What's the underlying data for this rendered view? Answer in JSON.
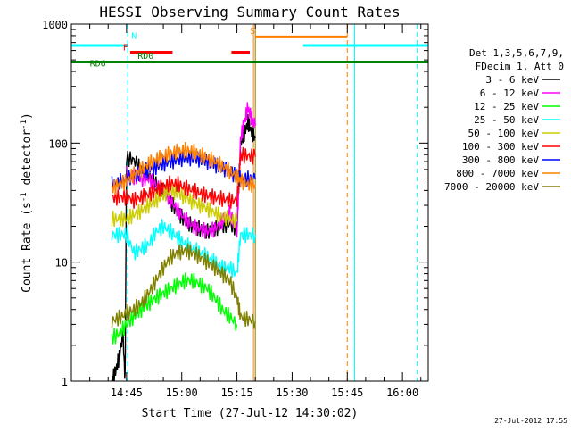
{
  "chart_data": {
    "type": "line",
    "title": "HESSI Observing Summary Count Rates",
    "xlabel": "Start Time (27-Jul-12 14:30:02)",
    "ylabel": "Count Rate (s",
    "ylabel_sup1": "-1",
    "ylabel_mid": " detector",
    "ylabel_sup2": "-1",
    "ylabel_end": ")",
    "x_unit": "minutes after 14:30:02",
    "xlim": [
      0,
      97
    ],
    "ylim": [
      1,
      1000
    ],
    "yscale": "log",
    "grid": false,
    "x_ticks": [
      {
        "value": 15,
        "label": "14:45"
      },
      {
        "value": 30,
        "label": "15:00"
      },
      {
        "value": 45,
        "label": "15:15"
      },
      {
        "value": 60,
        "label": "15:30"
      },
      {
        "value": 75,
        "label": "15:45"
      },
      {
        "value": 90,
        "label": "16:00"
      }
    ],
    "y_ticks": [
      {
        "value": 1,
        "label": "1"
      },
      {
        "value": 10,
        "label": "10"
      },
      {
        "value": 100,
        "label": "100"
      },
      {
        "value": 1000,
        "label": "1000"
      }
    ],
    "legend_header": [
      "Det 1,3,5,6,7,9,",
      "FDecim 1, Att 0"
    ],
    "legend_position": "right",
    "series": [
      {
        "name": "3 - 6 keV",
        "color": "#000000",
        "x": [
          11,
          12,
          13,
          14,
          14.6,
          15,
          17,
          19,
          21,
          23,
          25,
          27,
          29,
          31,
          33,
          35,
          37,
          39,
          41,
          43,
          45,
          46,
          47,
          48,
          49,
          50
        ],
        "y": [
          1,
          1.2,
          1.6,
          2.5,
          1,
          75,
          72,
          60,
          55,
          45,
          40,
          32,
          26,
          22,
          20,
          19,
          18,
          19,
          20,
          21,
          19,
          100,
          120,
          150,
          125,
          110
        ]
      },
      {
        "name": "6 - 12 keV",
        "color": "#ff00ff",
        "x": [
          15,
          17,
          19,
          21,
          23,
          25,
          27,
          29,
          31,
          33,
          35,
          37,
          39,
          41,
          43,
          45,
          46,
          47,
          48,
          49,
          50
        ],
        "y": [
          55,
          52,
          50,
          50,
          45,
          40,
          33,
          27,
          23,
          20,
          19,
          18,
          19,
          22,
          26,
          18,
          110,
          150,
          200,
          160,
          140
        ]
      },
      {
        "name": "12 - 25 keV",
        "color": "#00ff00",
        "x": [
          11,
          13,
          15,
          17,
          19,
          21,
          23,
          25,
          27,
          29,
          31,
          33,
          35,
          37,
          39,
          41,
          43,
          45
        ],
        "y": [
          2.3,
          2.5,
          3,
          3.5,
          4,
          4.5,
          5,
          5.5,
          6,
          6.5,
          7,
          7,
          6.5,
          6,
          5,
          4,
          3.5,
          3
        ]
      },
      {
        "name": "25 - 50 keV",
        "color": "#00ffff",
        "x": [
          11,
          13,
          15,
          17,
          19,
          21,
          23,
          25,
          27,
          29,
          31,
          33,
          35,
          37,
          39,
          41,
          43,
          45,
          46,
          48,
          50
        ],
        "y": [
          17,
          17,
          17,
          12,
          13,
          14,
          18,
          20,
          18,
          16,
          14,
          13,
          12,
          11,
          10,
          9,
          9,
          8,
          17,
          17,
          17
        ]
      },
      {
        "name": "50 - 100 keV",
        "color": "#cccc00",
        "x": [
          11,
          13,
          15,
          17,
          19,
          21,
          23,
          25,
          27,
          29,
          31,
          33,
          35,
          37,
          39,
          41,
          43,
          45
        ],
        "y": [
          23,
          23,
          23,
          25,
          27,
          30,
          33,
          37,
          40,
          38,
          35,
          32,
          30,
          28,
          26,
          24,
          23,
          22
        ]
      },
      {
        "name": "100 - 300 keV",
        "color": "#ff0000",
        "x": [
          11,
          13,
          15,
          17,
          19,
          21,
          23,
          25,
          27,
          29,
          31,
          33,
          35,
          37,
          39,
          41,
          43,
          45,
          46,
          48,
          50
        ],
        "y": [
          35,
          35,
          35,
          33,
          35,
          37,
          40,
          43,
          46,
          45,
          42,
          40,
          38,
          36,
          35,
          34,
          33,
          33,
          80,
          78,
          77
        ]
      },
      {
        "name": "300 - 800 keV",
        "color": "#0000ff",
        "x": [
          11,
          13,
          15,
          17,
          19,
          21,
          23,
          25,
          27,
          29,
          31,
          33,
          35,
          37,
          39,
          41,
          43,
          45,
          46,
          48,
          50
        ],
        "y": [
          45,
          47,
          50,
          53,
          57,
          60,
          63,
          67,
          70,
          73,
          75,
          75,
          73,
          70,
          66,
          62,
          58,
          52,
          50,
          50,
          50
        ]
      },
      {
        "name": "800 - 7000 keV",
        "color": "#ff8000",
        "x": [
          11,
          13,
          15,
          17,
          19,
          21,
          23,
          25,
          27,
          29,
          31,
          33,
          35,
          37,
          39,
          41,
          43,
          45,
          46,
          48,
          50
        ],
        "y": [
          42,
          45,
          48,
          55,
          60,
          67,
          73,
          77,
          82,
          85,
          87,
          85,
          80,
          75,
          70,
          64,
          58,
          52,
          48,
          45,
          45
        ]
      },
      {
        "name": "7000 - 20000 keV",
        "color": "#808000",
        "x": [
          11,
          13,
          15,
          17,
          19,
          21,
          23,
          25,
          27,
          29,
          31,
          33,
          35,
          37,
          39,
          41,
          43,
          45,
          46,
          48,
          50
        ],
        "y": [
          3.2,
          3.4,
          3.7,
          4,
          4.5,
          5.5,
          7,
          9,
          11,
          12,
          12.5,
          12,
          11,
          10,
          9,
          8,
          7,
          5,
          3.5,
          3.3,
          3.2
        ]
      }
    ],
    "flag_bars": [
      {
        "label": "N",
        "color": "#00ffff",
        "y": 660,
        "segments": [
          [
            0,
            15.5
          ],
          [
            63,
            97
          ]
        ],
        "label_x": 16.3,
        "label_y": 750
      },
      {
        "label": "F",
        "color": "#ff0000",
        "y": 580,
        "segments": [
          [
            16,
            27.5
          ],
          [
            43.5,
            48.5
          ]
        ],
        "label_x": 14,
        "label_y": 600
      },
      {
        "label": "RD0",
        "color": "#008000",
        "y": 480,
        "segments": [
          [
            0,
            50
          ]
        ],
        "label_x": 18,
        "label_y": 510
      },
      {
        "label": "RD6",
        "color": "#008000",
        "y": 480,
        "segments": [
          [
            0,
            97
          ]
        ],
        "label_x": 5,
        "label_y": 440
      },
      {
        "label": "S",
        "color": "#ff8000",
        "y": 780,
        "segments": [
          [
            50,
            75
          ]
        ],
        "label_x": 48.5,
        "label_y": 830
      }
    ],
    "vertical_markers": [
      {
        "x": 0,
        "color": "#00ffff",
        "style": "solid"
      },
      {
        "x": 15.3,
        "color": "#00ffff",
        "style": "dashed"
      },
      {
        "x": 49.5,
        "color": "#ff8000",
        "style": "solid"
      },
      {
        "x": 50,
        "color": "#808000",
        "style": "solid"
      },
      {
        "x": 75,
        "color": "#ff8000",
        "style": "dashed"
      },
      {
        "x": 77,
        "color": "#00ffff",
        "style": "solid"
      },
      {
        "x": 94,
        "color": "#00ffff",
        "style": "dashed"
      }
    ]
  },
  "footer": {
    "timestamp": "27-Jul-2012 17:55"
  }
}
